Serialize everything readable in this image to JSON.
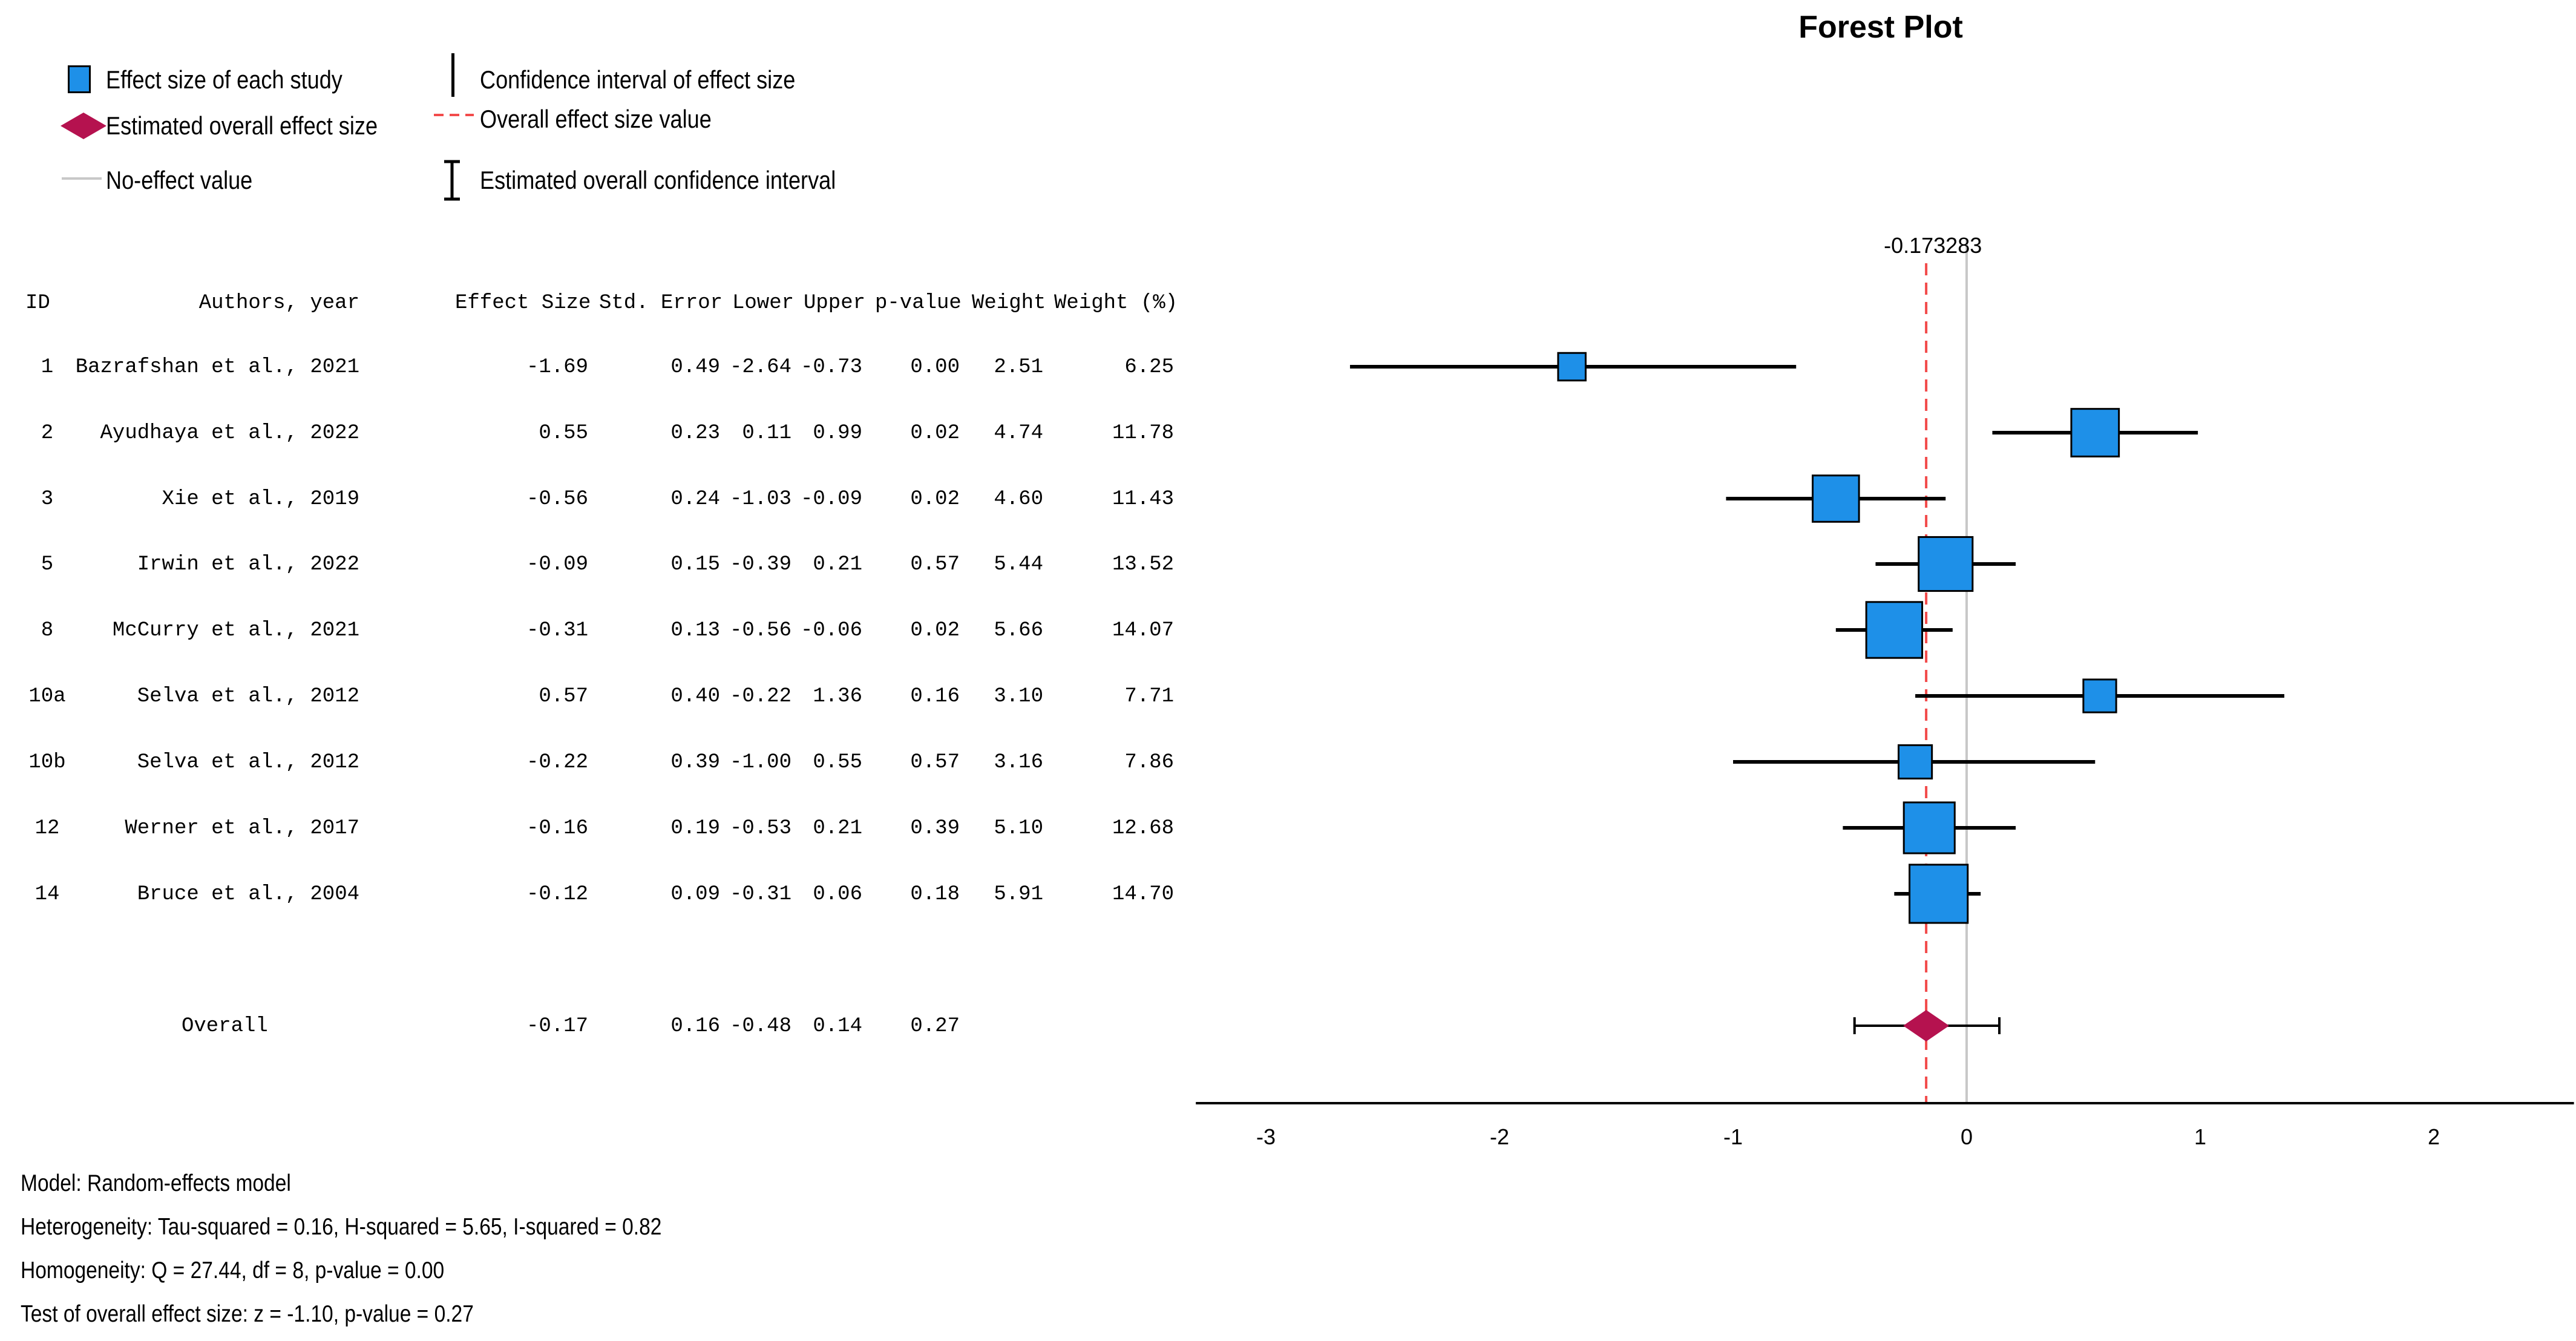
{
  "legend": {
    "effect_size": "Effect size of each study",
    "overall_effect": "Estimated overall effect size",
    "no_effect": "No-effect value",
    "ci": "Confidence interval of effect size",
    "overall_value": "Overall effect size value",
    "overall_ci": "Estimated overall confidence interval"
  },
  "table": {
    "headers": [
      "ID",
      "Authors, year",
      "Effect Size",
      "Std. Error",
      "Lower",
      "Upper",
      "p-value",
      "Weight",
      "Weight (%)"
    ],
    "rows": [
      [
        "1",
        "Bazrafshan et al., 2021",
        "-1.69",
        "0.49",
        "-2.64",
        "-0.73",
        "0.00",
        "2.51",
        "6.25"
      ],
      [
        "2",
        "Ayudhaya et al., 2022",
        "0.55",
        "0.23",
        "0.11",
        "0.99",
        "0.02",
        "4.74",
        "11.78"
      ],
      [
        "3",
        "Xie et al., 2019",
        "-0.56",
        "0.24",
        "-1.03",
        "-0.09",
        "0.02",
        "4.60",
        "11.43"
      ],
      [
        "5",
        "Irwin et al., 2022",
        "-0.09",
        "0.15",
        "-0.39",
        "0.21",
        "0.57",
        "5.44",
        "13.52"
      ],
      [
        "8",
        "McCurry et al., 2021",
        "-0.31",
        "0.13",
        "-0.56",
        "-0.06",
        "0.02",
        "5.66",
        "14.07"
      ],
      [
        "10a",
        "Selva et al., 2012",
        "0.57",
        "0.40",
        "-0.22",
        "1.36",
        "0.16",
        "3.10",
        "7.71"
      ],
      [
        "10b",
        "Selva et al., 2012",
        "-0.22",
        "0.39",
        "-1.00",
        "0.55",
        "0.57",
        "3.16",
        "7.86"
      ],
      [
        "12",
        "Werner et al., 2017",
        "-0.16",
        "0.19",
        "-0.53",
        "0.21",
        "0.39",
        "5.10",
        "12.68"
      ],
      [
        "14",
        "Bruce et al., 2004",
        "-0.12",
        "0.09",
        "-0.31",
        "0.06",
        "0.18",
        "5.91",
        "14.70"
      ]
    ],
    "overall": {
      "label": "Overall",
      "effect": "-0.17",
      "se": "0.16",
      "lower": "-0.48",
      "upper": "0.14",
      "p": "0.27"
    }
  },
  "footer": {
    "model": "Model: Random-effects model",
    "heterogeneity": "Heterogeneity: Tau-squared = 0.16, H-squared = 5.65, I-squared = 0.82",
    "homogeneity": "Homogeneity: Q = 27.44, df = 8, p-value = 0.00",
    "test": "Test of overall effect size: z = -1.10, p-value = 0.27"
  },
  "chart_data": {
    "type": "scatter",
    "subtype": "forest",
    "title": "Forest Plot",
    "xlim": [
      -3.3,
      2.6
    ],
    "xticks": [
      -3,
      -2,
      -1,
      0,
      1,
      2
    ],
    "no_effect_value": 0,
    "overall_value_label": "-0.173283",
    "overall_value": -0.173283,
    "studies": [
      {
        "id": "1",
        "effect": -1.69,
        "lower": -2.64,
        "upper": -0.73,
        "weight_pct": 6.25
      },
      {
        "id": "2",
        "effect": 0.55,
        "lower": 0.11,
        "upper": 0.99,
        "weight_pct": 11.78
      },
      {
        "id": "3",
        "effect": -0.56,
        "lower": -1.03,
        "upper": -0.09,
        "weight_pct": 11.43
      },
      {
        "id": "5",
        "effect": -0.09,
        "lower": -0.39,
        "upper": 0.21,
        "weight_pct": 13.52
      },
      {
        "id": "8",
        "effect": -0.31,
        "lower": -0.56,
        "upper": -0.06,
        "weight_pct": 14.07
      },
      {
        "id": "10a",
        "effect": 0.57,
        "lower": -0.22,
        "upper": 1.36,
        "weight_pct": 7.71
      },
      {
        "id": "10b",
        "effect": -0.22,
        "lower": -1.0,
        "upper": 0.55,
        "weight_pct": 7.86
      },
      {
        "id": "12",
        "effect": -0.16,
        "lower": -0.53,
        "upper": 0.21,
        "weight_pct": 12.68
      },
      {
        "id": "14",
        "effect": -0.12,
        "lower": -0.31,
        "upper": 0.06,
        "weight_pct": 14.7
      }
    ],
    "overall": {
      "effect": -0.173283,
      "lower": -0.48,
      "upper": 0.14
    },
    "colors": {
      "study_fill": "#1E90E8",
      "overall_fill": "#B5124F",
      "overall_line": "#F24B4B",
      "no_effect_line": "#C8C8C8",
      "ci_line": "#000000"
    }
  }
}
